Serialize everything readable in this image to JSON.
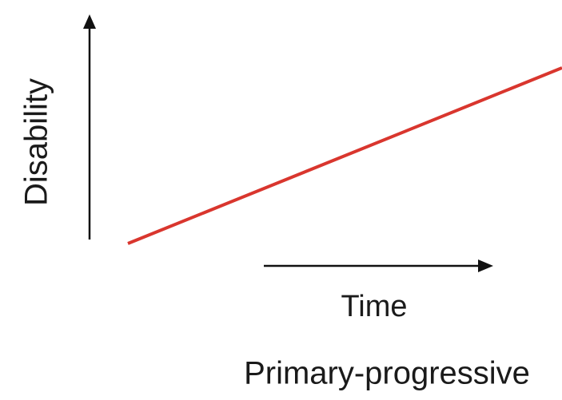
{
  "axes": {
    "y_label": "Disability",
    "x_label": "Time"
  },
  "caption": "Primary-progressive"
}
